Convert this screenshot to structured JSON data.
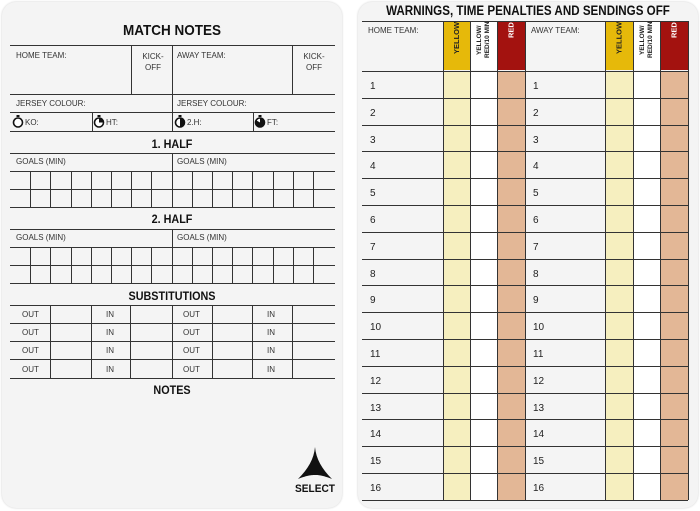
{
  "match_notes": {
    "title": "MATCH NOTES",
    "home_team_label": "HOME TEAM:",
    "away_team_label": "AWAY TEAM:",
    "kickoff_label": "KICK-\nOFF",
    "jersey_label": "JERSEY COLOUR:",
    "timers": [
      {
        "icon": "stopwatch-empty-icon",
        "label": "KO:"
      },
      {
        "icon": "stopwatch-quarter-icon",
        "label": "HT:"
      },
      {
        "icon": "stopwatch-half-icon",
        "label": "2.H:"
      },
      {
        "icon": "stopwatch-full-icon",
        "label": "FT:"
      }
    ],
    "first_half": "1. HALF",
    "second_half": "2. HALF",
    "goals_label": "GOALS (MIN)",
    "substitutions": "SUBSTITUTIONS",
    "out_label": "OUT",
    "in_label": "IN",
    "notes": "NOTES",
    "logo_text": "SELECT"
  },
  "warnings": {
    "title": "WARNINGS, TIME PENALTIES AND SENDINGS OFF",
    "home_team_label": "HOME TEAM:",
    "away_team_label": "AWAY TEAM:",
    "yellow": "YELLOW",
    "yellow_red": "YELLOW/\nRED/10 MIN",
    "red": "RED",
    "rows": [
      "1",
      "2",
      "3",
      "4",
      "5",
      "6",
      "7",
      "8",
      "9",
      "10",
      "11",
      "12",
      "13",
      "14",
      "15",
      "16"
    ]
  },
  "colors": {
    "yellow_header": "#e6b90a",
    "red_header": "#a3120f",
    "yellow_cell": "#f6efbf",
    "red_cell": "#e3b796"
  }
}
